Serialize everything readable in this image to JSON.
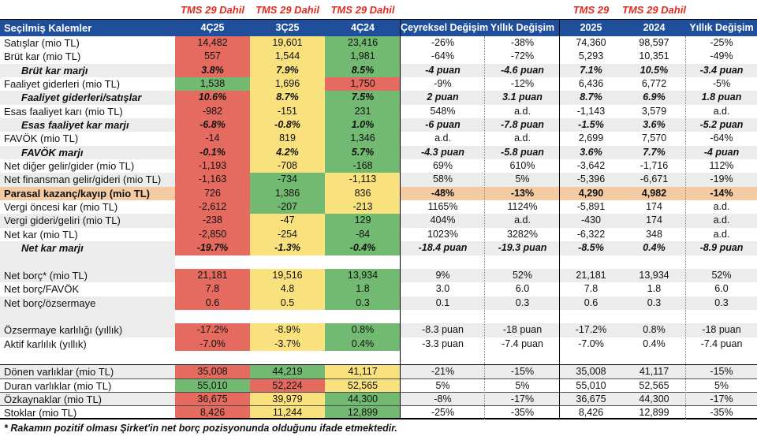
{
  "meta": {
    "tms_label": "TMS 29 Dahil",
    "footnote": "* Rakamın pozitif olması Şirket'in net borç pozisyonunda olduğunu ifade etmektedir."
  },
  "colors": {
    "header_bg": "#1F4E9B",
    "tms_text": "#E02B1D",
    "red": "#E56A5F",
    "yellow": "#F9E27D",
    "green": "#72B972",
    "peach": "#F5CBA3",
    "stripe": "#ECECEC"
  },
  "header": {
    "label": "Seçilmiş Kalemler",
    "cols": [
      "4Ç25",
      "3Ç25",
      "4Ç24",
      "Çeyreksel Değişim",
      "Yıllık Değişim",
      "2025",
      "2024",
      "Yıllık Değişim"
    ]
  },
  "rows": [
    {
      "label": "Satışlar (mio TL)",
      "style": "normal",
      "shade": false,
      "fills": [
        "red",
        "yellow",
        "green"
      ],
      "cells": [
        "14,482",
        "19,601",
        "23,416",
        "-26%",
        "-38%",
        "74,360",
        "98,597",
        "-25%"
      ]
    },
    {
      "label": "Brüt kar (mio TL)",
      "style": "normal",
      "shade": false,
      "fills": [
        "red",
        "yellow",
        "green"
      ],
      "cells": [
        "557",
        "1,544",
        "1,981",
        "-64%",
        "-72%",
        "5,293",
        "10,351",
        "-49%"
      ]
    },
    {
      "label": "Brüt kar marjı",
      "style": "margin",
      "shade": true,
      "fills": [
        "red",
        "yellow",
        "green"
      ],
      "cells": [
        "3.8%",
        "7.9%",
        "8.5%",
        "-4 puan",
        "-4.6 puan",
        "7.1%",
        "10.5%",
        "-3.4 puan"
      ]
    },
    {
      "label": "Faaliyet giderleri (mio TL)",
      "style": "normal",
      "shade": false,
      "fills": [
        "green",
        "yellow",
        "red"
      ],
      "cells": [
        "1,538",
        "1,696",
        "1,750",
        "-9%",
        "-12%",
        "6,436",
        "6,772",
        "-5%"
      ]
    },
    {
      "label": "Faaliyet giderleri/satışlar",
      "style": "margin",
      "shade": true,
      "fills": [
        "red",
        "yellow",
        "green"
      ],
      "cells": [
        "10.6%",
        "8.7%",
        "7.5%",
        "2 puan",
        "3.1 puan",
        "8.7%",
        "6.9%",
        "1.8 puan"
      ]
    },
    {
      "label": "Esas faaliyet karı (mio TL)",
      "style": "normal",
      "shade": false,
      "fills": [
        "red",
        "yellow",
        "green"
      ],
      "cells": [
        "-982",
        "-151",
        "231",
        "548%",
        "a.d.",
        "-1,143",
        "3,579",
        "a.d."
      ]
    },
    {
      "label": "Esas faaliyet kar marjı",
      "style": "margin",
      "shade": true,
      "fills": [
        "red",
        "yellow",
        "green"
      ],
      "cells": [
        "-6.8%",
        "-0.8%",
        "1.0%",
        "-6 puan",
        "-7.8 puan",
        "-1.5%",
        "3.6%",
        "-5.2 puan"
      ]
    },
    {
      "label": "FAVÖK (mio TL)",
      "style": "normal",
      "shade": false,
      "fills": [
        "red",
        "yellow",
        "green"
      ],
      "cells": [
        "-14",
        "819",
        "1,346",
        "a.d.",
        "a.d.",
        "2,699",
        "7,570",
        "-64%"
      ]
    },
    {
      "label": "FAVÖK marjı",
      "style": "margin",
      "shade": true,
      "fills": [
        "red",
        "yellow",
        "green"
      ],
      "cells": [
        "-0.1%",
        "4.2%",
        "5.7%",
        "-4.3 puan",
        "-5.8 puan",
        "3.6%",
        "7.7%",
        "-4 puan"
      ]
    },
    {
      "label": "Net diğer gelir/gider (mio TL)",
      "style": "normal",
      "shade": false,
      "fills": [
        "red",
        "yellow",
        "green"
      ],
      "cells": [
        "-1,193",
        "-708",
        "-168",
        "69%",
        "610%",
        "-3,642",
        "-1,716",
        "112%"
      ]
    },
    {
      "label": "Net finansman gelir/gideri (mio TL)",
      "style": "normal",
      "shade": true,
      "fills": [
        "red",
        "green",
        "yellow"
      ],
      "cells": [
        "-1,163",
        "-734",
        "-1,113",
        "58%",
        "5%",
        "-5,396",
        "-6,671",
        "-19%"
      ]
    },
    {
      "label": "Parasal kazanç/kayıp (mio TL)",
      "style": "highlight",
      "shade": false,
      "fills": [
        "red",
        "green",
        "yellow"
      ],
      "cells": [
        "726",
        "1,386",
        "836",
        "-48%",
        "-13%",
        "4,290",
        "4,982",
        "-14%"
      ]
    },
    {
      "label": "Vergi öncesi kar (mio TL)",
      "style": "normal",
      "shade": false,
      "fills": [
        "red",
        "green",
        "yellow"
      ],
      "cells": [
        "-2,612",
        "-207",
        "-213",
        "1165%",
        "1124%",
        "-5,891",
        "174",
        "a.d."
      ]
    },
    {
      "label": "Vergi gideri/geliri (mio TL)",
      "style": "normal",
      "shade": true,
      "fills": [
        "red",
        "yellow",
        "green"
      ],
      "cells": [
        "-238",
        "-47",
        "129",
        "404%",
        "a.d.",
        "-430",
        "174",
        "a.d."
      ]
    },
    {
      "label": "Net kar (mio TL)",
      "style": "normal",
      "shade": false,
      "fills": [
        "red",
        "yellow",
        "green"
      ],
      "cells": [
        "-2,850",
        "-254",
        "-84",
        "1023%",
        "3282%",
        "-6,322",
        "348",
        "a.d."
      ]
    },
    {
      "label": "Net kar marjı",
      "style": "margin",
      "shade": true,
      "fills": [
        "red",
        "yellow",
        "green"
      ],
      "cells": [
        "-19.7%",
        "-1.3%",
        "-0.4%",
        "-18.4 puan",
        "-19.3 puan",
        "-8.5%",
        "0.4%",
        "-8.9 puan"
      ]
    },
    {
      "label": "",
      "style": "blank",
      "shade": true,
      "fills": [],
      "cells": [
        "",
        "",
        "",
        "",
        "",
        "",
        "",
        ""
      ]
    },
    {
      "label": "Net borç* (mio TL)",
      "style": "normal",
      "shade": true,
      "fills": [
        "red",
        "yellow",
        "green"
      ],
      "cells": [
        "21,181",
        "19,516",
        "13,934",
        "9%",
        "52%",
        "21,181",
        "13,934",
        "52%"
      ]
    },
    {
      "label": "Net borç/FAVÖK",
      "style": "normal",
      "shade": false,
      "fills": [
        "red",
        "yellow",
        "green"
      ],
      "cells": [
        "7.8",
        "4.8",
        "1.8",
        "3.0",
        "6.0",
        "7.8",
        "1.8",
        "6.0"
      ]
    },
    {
      "label": "Net borç/özsermaye",
      "style": "normal",
      "shade": true,
      "fills": [
        "red",
        "yellow",
        "green"
      ],
      "cells": [
        "0.6",
        "0.5",
        "0.3",
        "0.1",
        "0.3",
        "0.6",
        "0.3",
        "0.3"
      ]
    },
    {
      "label": "",
      "style": "blank",
      "shade": true,
      "fills": [],
      "cells": [
        "",
        "",
        "",
        "",
        "",
        "",
        "",
        ""
      ]
    },
    {
      "label": "Özsermaye karlılığı (yıllık)",
      "style": "normal",
      "shade": true,
      "fills": [
        "red",
        "yellow",
        "green"
      ],
      "cells": [
        "-17.2%",
        "-8.9%",
        "0.8%",
        "-8.3 puan",
        "-18 puan",
        "-17.2%",
        "0.8%",
        "-18 puan"
      ]
    },
    {
      "label": "Aktif karlılık (yıllık)",
      "style": "normal",
      "shade": false,
      "fills": [
        "red",
        "yellow",
        "green"
      ],
      "cells": [
        "-7.0%",
        "-3.7%",
        "0.4%",
        "-3.3 puan",
        "-7.4 puan",
        "-7.0%",
        "0.4%",
        "-7.4 puan"
      ]
    },
    {
      "label": "",
      "style": "blank",
      "shade": false,
      "fills": [],
      "cells": [
        "",
        "",
        "",
        "",
        "",
        "",
        "",
        ""
      ]
    },
    {
      "label": "Dönen varlıklar (mio TL)",
      "style": "normal",
      "shade": true,
      "fills": [
        "red",
        "green",
        "yellow"
      ],
      "cells": [
        "35,008",
        "44,219",
        "41,117",
        "-21%",
        "-15%",
        "35,008",
        "41,117",
        "-15%"
      ]
    },
    {
      "label": "Duran varlıklar (mio TL)",
      "style": "normal",
      "shade": false,
      "fills": [
        "green",
        "red",
        "yellow"
      ],
      "cells": [
        "55,010",
        "52,224",
        "52,565",
        "5%",
        "5%",
        "55,010",
        "52,565",
        "5%"
      ]
    },
    {
      "label": "Özkaynaklar (mio TL)",
      "style": "normal",
      "shade": true,
      "fills": [
        "red",
        "yellow",
        "green"
      ],
      "cells": [
        "36,675",
        "39,979",
        "44,300",
        "-8%",
        "-17%",
        "36,675",
        "44,300",
        "-17%"
      ]
    },
    {
      "label": "Stoklar (mio TL)",
      "style": "normal",
      "shade": false,
      "fills": [
        "red",
        "yellow",
        "green"
      ],
      "cells": [
        "8,426",
        "11,244",
        "12,899",
        "-25%",
        "-35%",
        "8,426",
        "12,899",
        "-35%"
      ]
    }
  ]
}
